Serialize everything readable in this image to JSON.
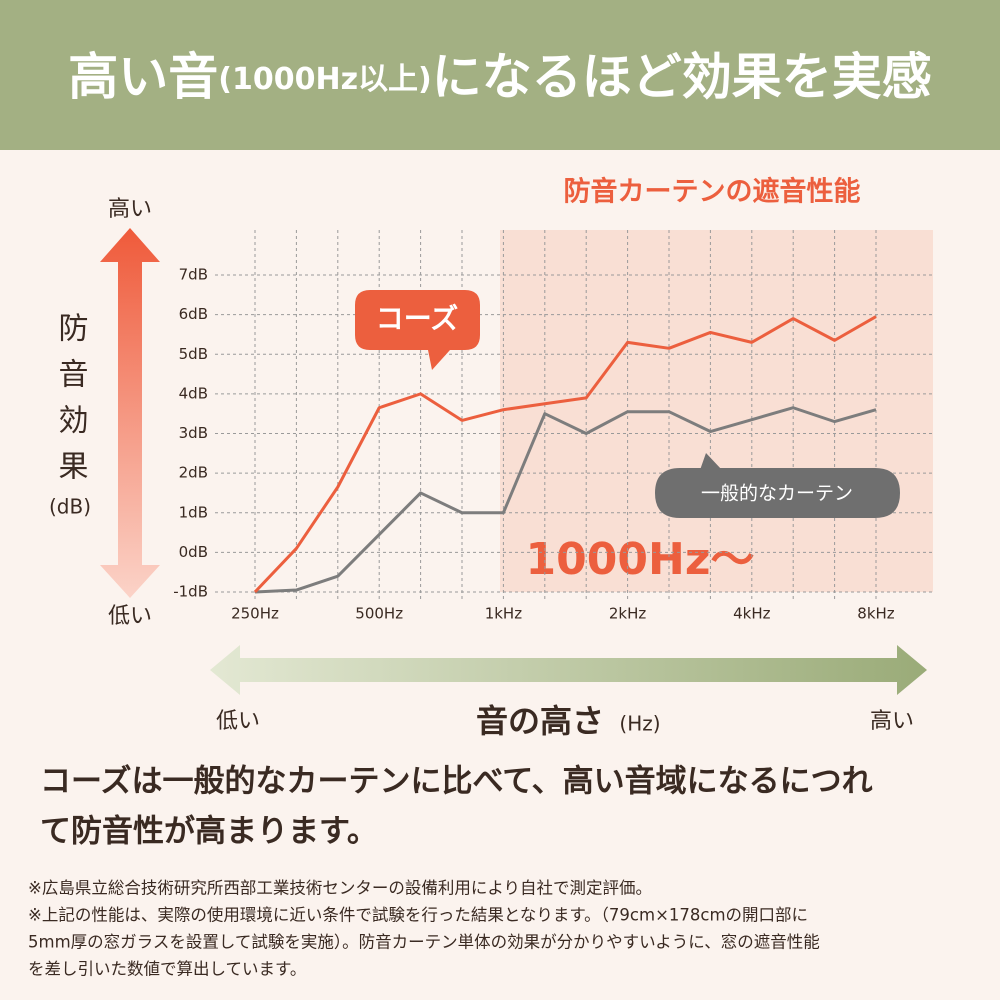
{
  "header": {
    "title_parts": [
      "高い音",
      "(1000Hz以上)",
      "になるほど効果を実感"
    ]
  },
  "chart_data": {
    "type": "line",
    "region_label": "防音カーテンの遮音性能",
    "region_annotation": "1000Hz〜",
    "ylabel": "防音効果",
    "ylabel_unit": "(dB)",
    "y_high_label": "高い",
    "y_low_label": "低い",
    "xlabel": "音の高さ",
    "xlabel_unit": "(Hz)",
    "x_low_label": "低い",
    "x_high_label": "高い",
    "categories": [
      "250Hz",
      null,
      null,
      "500Hz",
      null,
      null,
      "1kHz",
      null,
      null,
      "2kHz",
      null,
      null,
      "4kHz",
      null,
      null,
      "8kHz"
    ],
    "series": [
      {
        "name": "コーズ",
        "color": "#ec5f3e",
        "values": [
          -1,
          0.1,
          1.65,
          3.65,
          4.0,
          3.33,
          3.6,
          3.75,
          3.9,
          5.3,
          5.15,
          5.55,
          5.3,
          5.9,
          5.35,
          5.95
        ]
      },
      {
        "name": "一般的なカーテン",
        "color": "#7d7d7d",
        "values": [
          -1,
          -0.95,
          -0.6,
          0.45,
          1.5,
          1.0,
          1.0,
          3.5,
          3.0,
          3.55,
          3.55,
          3.05,
          3.35,
          3.65,
          3.3,
          3.6
        ]
      }
    ],
    "ylim": [
      -1,
      7
    ],
    "yticks": [
      {
        "value": -1,
        "label": "-1dB"
      },
      {
        "value": 0,
        "label": "0dB"
      },
      {
        "value": 1,
        "label": "1dB"
      },
      {
        "value": 2,
        "label": "2dB"
      },
      {
        "value": 3,
        "label": "3dB"
      },
      {
        "value": 4,
        "label": "4dB"
      },
      {
        "value": 5,
        "label": "5dB"
      },
      {
        "value": 6,
        "label": "6dB"
      },
      {
        "value": 7,
        "label": "7dB"
      }
    ],
    "grid": true
  },
  "body": {
    "lines": [
      "コーズは一般的なカーテンに比べて、高い音域になるにつれ",
      "て防音性が高まります。"
    ]
  },
  "footnotes": [
    "※広島県立総合技術研究所西部工業技術センターの設備利用により自社で測定評価。",
    "※上記の性能は、実際の使用環境に近い条件で試験を行った結果となります。（79cm×178cmの開口部に",
    "5mm厚の窓ガラスを設置して試験を実施）。防音カーテン単体の効果が分かりやすいように、窓の遮音性能",
    "を差し引いた数値で算出しています。"
  ]
}
